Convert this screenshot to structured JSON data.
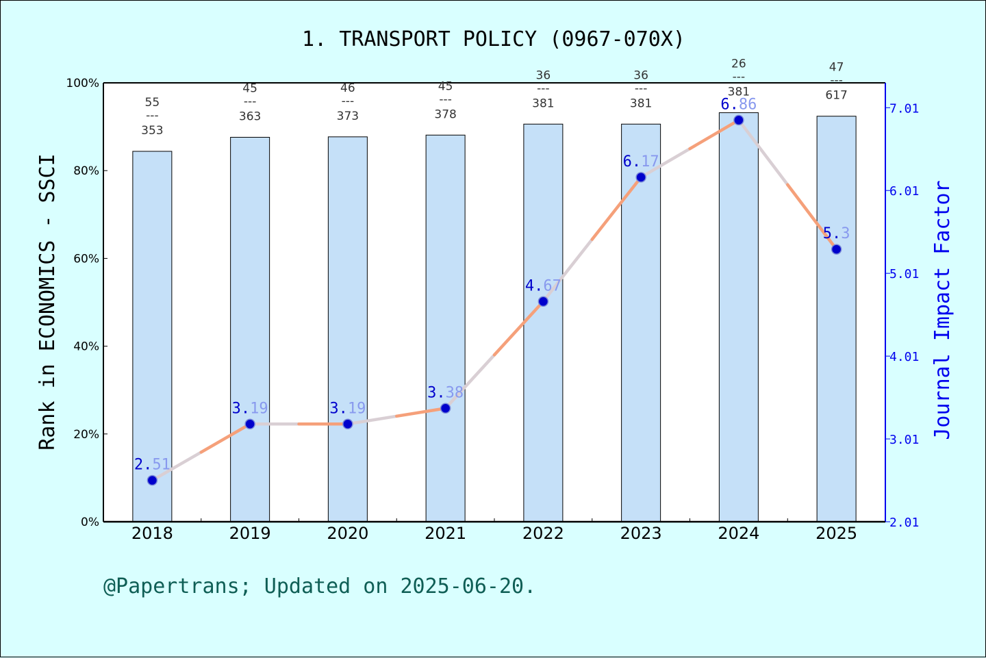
{
  "chart_data": {
    "type": "bar",
    "title": "1. TRANSPORT POLICY (0967-070X)",
    "footer": "@Papertrans; Updated on 2025-06-20.",
    "xlabel": "",
    "ylabel": "Rank in ECONOMICS - SSCI",
    "y2label": "Journal Impact Factor",
    "categories": [
      "2018",
      "2019",
      "2020",
      "2021",
      "2022",
      "2023",
      "2024",
      "2025"
    ],
    "ylim": [
      0,
      100
    ],
    "y_ticks": [
      "0%",
      "20%",
      "40%",
      "60%",
      "80%",
      "100%"
    ],
    "y2lim": [
      2.01,
      7.31
    ],
    "y2_ticks": [
      "2.01",
      "3.01",
      "4.01",
      "5.01",
      "6.01",
      "7.01"
    ],
    "grid": false,
    "series": [
      {
        "type": "bar",
        "values": [
          84.4,
          87.6,
          87.7,
          88.1,
          90.6,
          90.6,
          93.2,
          92.4
        ],
        "rank_labels": [
          {
            "rank": "55",
            "total": "353"
          },
          {
            "rank": "45",
            "total": "363"
          },
          {
            "rank": "46",
            "total": "373"
          },
          {
            "rank": "45",
            "total": "378"
          },
          {
            "rank": "36",
            "total": "381"
          },
          {
            "rank": "36",
            "total": "381"
          },
          {
            "rank": "26",
            "total": "381"
          },
          {
            "rank": "47",
            "total": "617"
          }
        ],
        "separator": "---",
        "color": "#c5e0f8"
      },
      {
        "type": "line",
        "axis": "right",
        "values": [
          2.51,
          3.19,
          3.19,
          3.38,
          4.67,
          6.17,
          6.86,
          5.3
        ],
        "labels": [
          "2.51",
          "3.19",
          "3.19",
          "3.38",
          "4.67",
          "6.17",
          "6.86",
          "5.3"
        ],
        "color": "#f5a07a",
        "marker_color": "#0000cc"
      }
    ]
  }
}
